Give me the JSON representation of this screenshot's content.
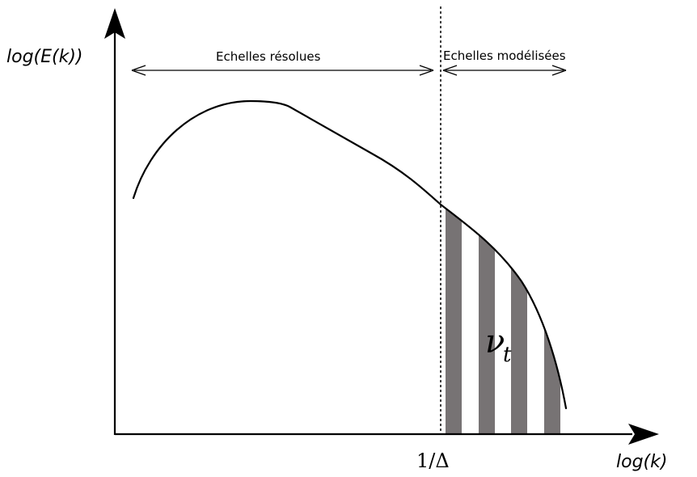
{
  "labels": {
    "y_axis": "log(E(k))",
    "x_axis": "log(k)",
    "resolved_scales": "Echelles résolues",
    "modeled_scales": "Echelles modélisées",
    "cutoff": "1/Δ",
    "nu_symbol": "ν",
    "nu_subscript": "t"
  },
  "colors": {
    "axes": "#000000",
    "curve": "#000000",
    "hatch": "#777374",
    "cutoff_line": "#000000"
  }
}
